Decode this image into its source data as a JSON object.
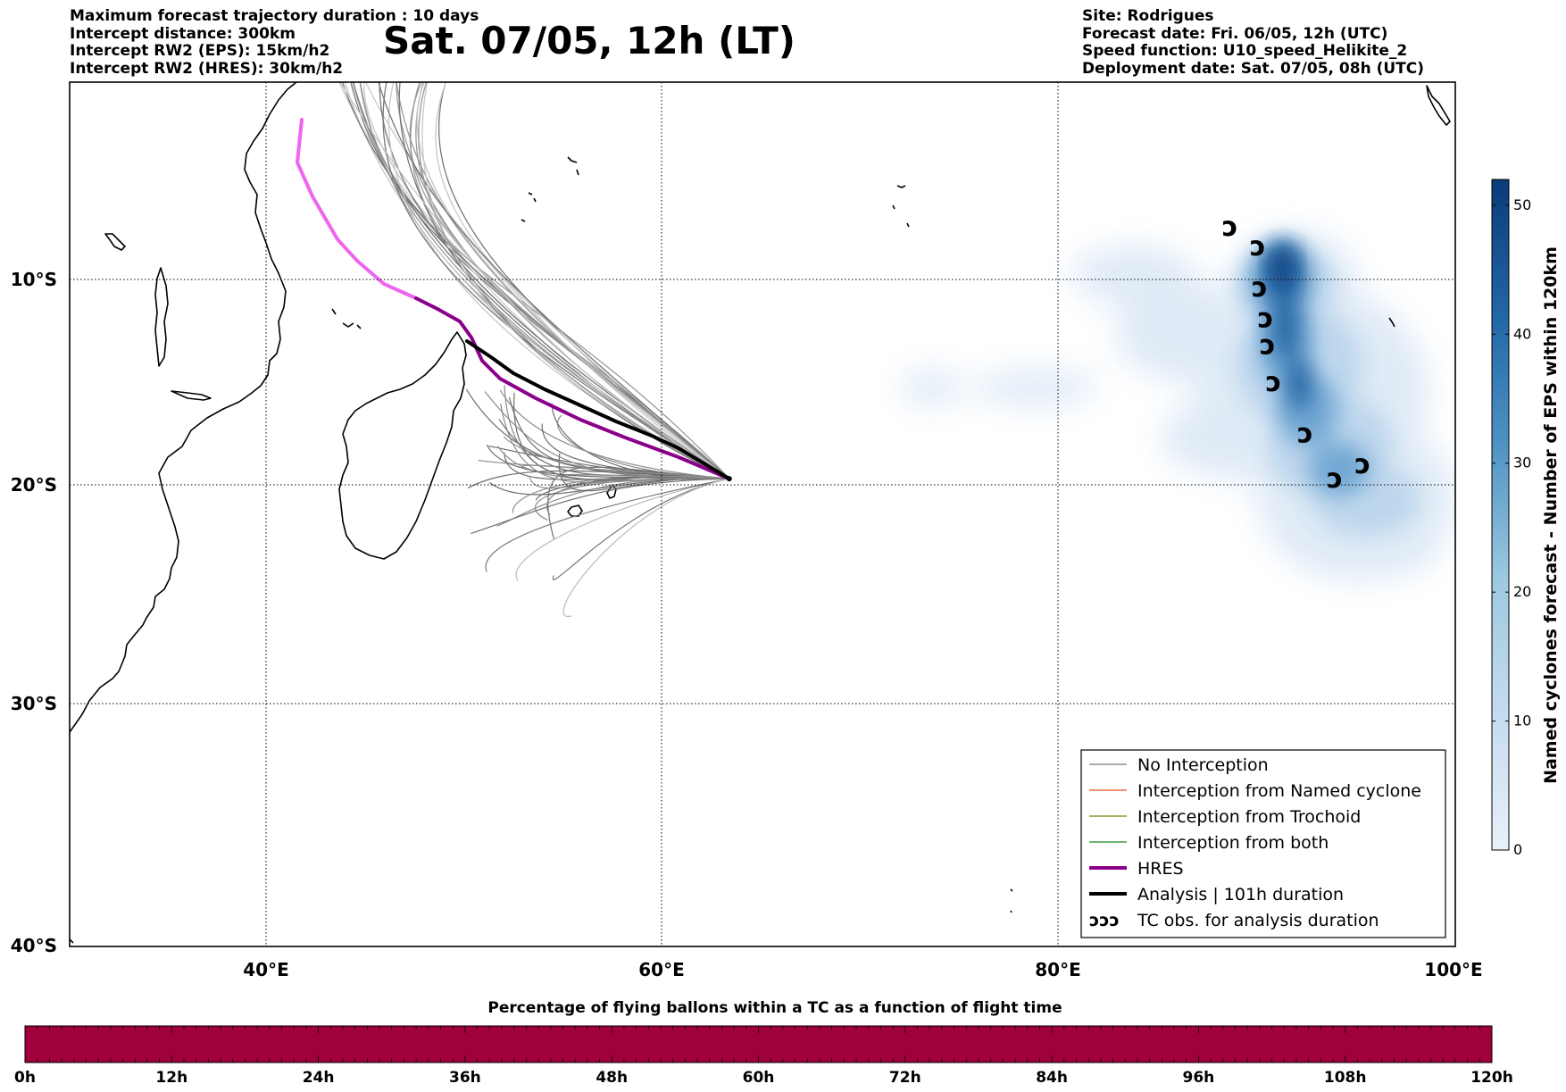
{
  "header": {
    "left_lines": [
      "Maximum forecast trajectory duration : 10 days",
      "Intercept distance: 300km",
      "Intercept RW2 (EPS):  15km/h2",
      "Intercept RW2 (HRES): 30km/h2"
    ],
    "right_lines": [
      "Site: Rodrigues",
      "Forecast date: Fri. 06/05, 12h (UTC)",
      "Speed function: U10_speed_Helikite_2",
      "Deployment date: Sat. 07/05, 08h (UTC)"
    ],
    "title": "Sat. 07/05, 12h (LT)"
  },
  "map": {
    "lon_labels": [
      "40°E",
      "60°E",
      "80°E",
      "100°E"
    ],
    "lat_labels": [
      "10°S",
      "20°S",
      "30°S",
      "40°S"
    ],
    "lon_range": [
      30,
      100
    ],
    "lat_range": [
      -1,
      -40.5
    ],
    "launch_site": {
      "lon": 63.4,
      "lat": -19.7
    },
    "colors": {
      "no_interception": "#777777",
      "named_cyclone": "#e8501a",
      "trochoid": "#7f7f10",
      "both": "#1a8a1a",
      "hres": "#8b008b",
      "hres_early": "#ee66ee",
      "analysis": "#000000"
    },
    "tc_obs": [
      {
        "lon": 88.7,
        "lat": -7.6
      },
      {
        "lon": 90.1,
        "lat": -8.5
      },
      {
        "lon": 90.2,
        "lat": -10.4
      },
      {
        "lon": 90.5,
        "lat": -11.9
      },
      {
        "lon": 90.6,
        "lat": -13.2
      },
      {
        "lon": 90.9,
        "lat": -15.0
      },
      {
        "lon": 92.5,
        "lat": -17.5
      },
      {
        "lon": 94.0,
        "lat": -19.7
      },
      {
        "lon": 95.4,
        "lat": -19.0
      }
    ]
  },
  "legend": {
    "items": [
      {
        "label": "No Interception",
        "color": "#777777",
        "style": "thin"
      },
      {
        "label": "Interception from Named cyclone",
        "color": "#e8501a",
        "style": "thin"
      },
      {
        "label": "Interception from Trochoid",
        "color": "#7f7f10",
        "style": "thin"
      },
      {
        "label": "Interception from both",
        "color": "#1a8a1a",
        "style": "thin"
      },
      {
        "label": "HRES",
        "color": "#8b008b",
        "style": "thick"
      },
      {
        "label": "Analysis | 101h duration",
        "color": "#000000",
        "style": "thick"
      },
      {
        "label": "TC obs. for analysis duration",
        "color": "#000000",
        "style": "cyclone"
      }
    ],
    "cyclone_glyphs": "ↄↄↄ"
  },
  "eps_colorbar": {
    "label": "Named cyclones forecast - Number of EPS within 120km",
    "ticks": [
      "0",
      "10",
      "20",
      "30",
      "40",
      "50"
    ],
    "range": [
      0,
      52
    ],
    "color_min": "#e6eff9",
    "color_max": "#0b3d7a"
  },
  "time_bar": {
    "title": "Percentage of flying ballons within a TC as a function of flight time",
    "ticks": [
      "0h",
      "12h",
      "24h",
      "36h",
      "48h",
      "60h",
      "72h",
      "84h",
      "96h",
      "108h",
      "120h"
    ],
    "fill_color": "#a0003c"
  }
}
